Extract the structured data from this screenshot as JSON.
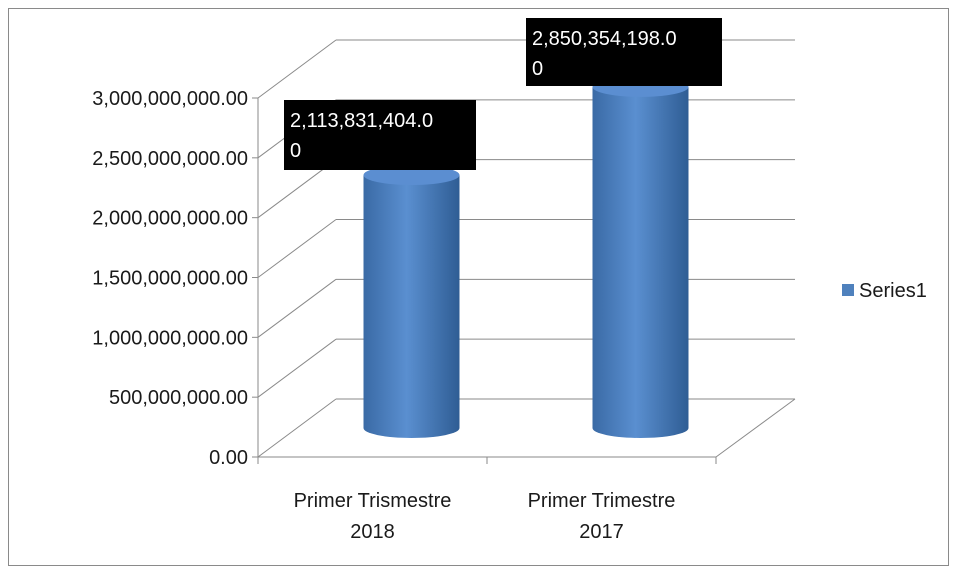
{
  "chart_data": {
    "type": "bar",
    "style": "3d-cylinder",
    "categories": [
      "Primer Trismestre 2018",
      "Primer Trimestre 2017"
    ],
    "category_lines": [
      [
        "Primer Trismestre",
        "2018"
      ],
      [
        "Primer Trimestre",
        "2017"
      ]
    ],
    "series": [
      {
        "name": "Series1",
        "values": [
          2113831404.0,
          2850354198.0
        ],
        "data_labels": [
          [
            "2,113,831,404.0",
            "0"
          ],
          [
            "2,850,354,198.0",
            "0"
          ]
        ],
        "color": "#4f81bd"
      }
    ],
    "y_ticks": [
      0,
      500000000,
      1000000000,
      1500000000,
      2000000000,
      2500000000,
      3000000000
    ],
    "y_tick_labels": [
      "0.00",
      "500,000,000.00",
      "1,000,000,000.00",
      "1,500,000,000.00",
      "2,000,000,000.00",
      "2,500,000,000.00",
      "3,000,000,000.00"
    ],
    "ylim": [
      0,
      3000000000
    ],
    "grid": true,
    "legend_position": "right",
    "data_label_background": "#000000"
  }
}
